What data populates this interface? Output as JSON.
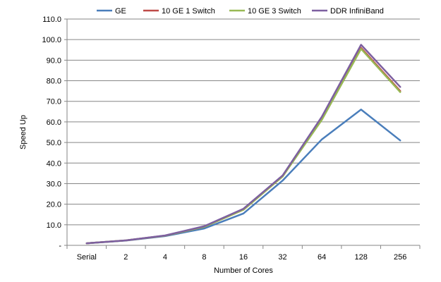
{
  "chart_data": {
    "type": "line",
    "title": "",
    "xlabel": "Number of Cores",
    "ylabel": "Speed Up",
    "categories": [
      "Serial",
      "2",
      "4",
      "8",
      "16",
      "32",
      "64",
      "128",
      "256"
    ],
    "y_tick_labels": [
      "-",
      "10.0",
      "20.0",
      "30.0",
      "40.0",
      "50.0",
      "60.0",
      "70.0",
      "80.0",
      "90.0",
      "100.0",
      "110.0"
    ],
    "ylim": [
      0,
      110
    ],
    "y_tick_step": 10,
    "grid": "horizontal",
    "legend_position": "top",
    "series": [
      {
        "name": "GE",
        "color": "#4a7ebb",
        "values": [
          1.0,
          2.3,
          4.5,
          8.2,
          15.5,
          31.5,
          51.5,
          66.0,
          51.0
        ]
      },
      {
        "name": "10 GE 1 Switch",
        "color": "#be4b48",
        "values": [
          1.0,
          2.4,
          4.7,
          9.0,
          17.3,
          33.5,
          61.5,
          96.0,
          75.0
        ]
      },
      {
        "name": "10 GE 3 Switch",
        "color": "#98b954",
        "values": [
          1.0,
          2.4,
          4.7,
          9.0,
          17.3,
          33.5,
          61.0,
          95.5,
          74.5
        ]
      },
      {
        "name": "DDR InfiniBand",
        "color": "#7d5fa0",
        "values": [
          1.0,
          2.4,
          4.8,
          9.3,
          17.8,
          34.0,
          62.5,
          97.5,
          77.0
        ]
      }
    ]
  }
}
